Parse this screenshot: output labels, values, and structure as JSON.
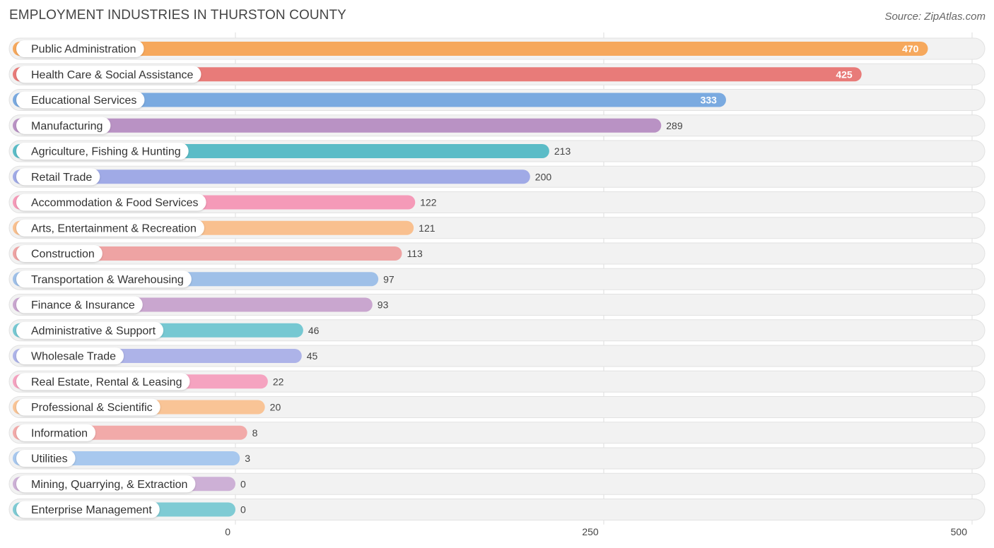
{
  "header": {
    "title": "EMPLOYMENT INDUSTRIES IN THURSTON COUNTY",
    "source": "Source: ZipAtlas.com"
  },
  "chart_data": {
    "type": "bar",
    "orientation": "horizontal",
    "title": "EMPLOYMENT INDUSTRIES IN THURSTON COUNTY",
    "xlabel": "",
    "ylabel": "",
    "xlim": [
      0,
      500
    ],
    "xticks": [
      0,
      250,
      500
    ],
    "grid": true,
    "categories": [
      "Public Administration",
      "Health Care & Social Assistance",
      "Educational Services",
      "Manufacturing",
      "Agriculture, Fishing & Hunting",
      "Retail Trade",
      "Accommodation & Food Services",
      "Arts, Entertainment & Recreation",
      "Construction",
      "Transportation & Warehousing",
      "Finance & Insurance",
      "Administrative & Support",
      "Wholesale Trade",
      "Real Estate, Rental & Leasing",
      "Professional & Scientific",
      "Information",
      "Utilities",
      "Mining, Quarrying, & Extraction",
      "Enterprise Management"
    ],
    "values": [
      470,
      425,
      333,
      289,
      213,
      200,
      122,
      121,
      113,
      97,
      93,
      46,
      45,
      22,
      20,
      8,
      3,
      0,
      0
    ],
    "colors": [
      "#f6a85c",
      "#e87b79",
      "#7aaae0",
      "#b992c4",
      "#5bbcc7",
      "#a0aae6",
      "#f59ab8",
      "#f9c08f",
      "#eea3a3",
      "#9fc0e8",
      "#c9a6cf",
      "#76c8d2",
      "#adb3e8",
      "#f5a3c0",
      "#f9c496",
      "#f2aaa9",
      "#a8c8ee",
      "#cdb0d6",
      "#7fcbd4"
    ]
  }
}
